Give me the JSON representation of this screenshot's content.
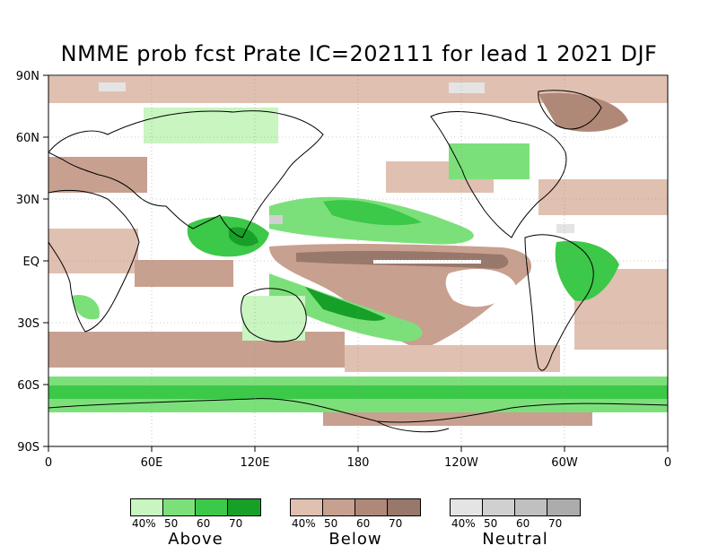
{
  "title": "NMME prob fcst Prate IC=202111 for lead 1 2021 DJF",
  "lat_labels": [
    "90N",
    "60N",
    "30N",
    "EQ",
    "30S",
    "60S",
    "90S"
  ],
  "lon_labels": [
    "0",
    "60E",
    "120E",
    "180",
    "120W",
    "60W",
    "0"
  ],
  "legends": [
    {
      "name": "Above",
      "ticks": [
        "40%",
        "50",
        "60",
        "70"
      ],
      "colors": [
        "#c8f5c0",
        "#7ce07a",
        "#3cc848",
        "#16a028"
      ]
    },
    {
      "name": "Below",
      "ticks": [
        "40%",
        "50",
        "60",
        "70"
      ],
      "colors": [
        "#e0c0b0",
        "#c8a090",
        "#b08878",
        "#98786a"
      ]
    },
    {
      "name": "Neutral",
      "ticks": [
        "40%",
        "50",
        "60",
        "70"
      ],
      "colors": [
        "#e4e4e4",
        "#d0d0d0",
        "#c0c0c0",
        "#acacac"
      ]
    }
  ],
  "colors": {
    "land_outline": "#000000",
    "above_light": "#c8f5c0",
    "above_mid": "#7ce07a",
    "above_strong": "#3cc848",
    "above_max": "#16a028",
    "below_light": "#e0c0b0",
    "below_mid": "#c8a090",
    "below_strong": "#b08878",
    "below_max": "#98786a",
    "neutral": "#dcdcdc"
  }
}
